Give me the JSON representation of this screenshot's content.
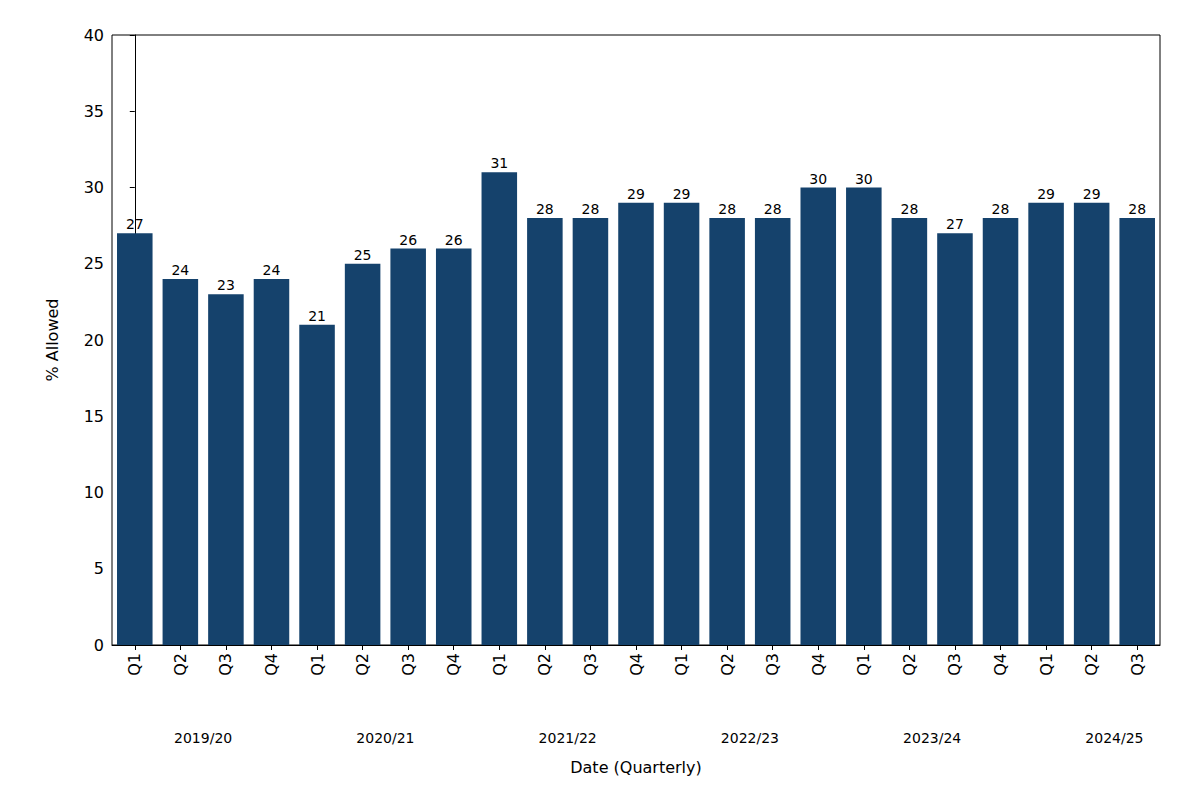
{
  "chart_data": {
    "type": "bar",
    "x_label": "Date (Quarterly)",
    "y_label": "% Allowed",
    "categories": [
      "Q1",
      "Q2",
      "Q3",
      "Q4",
      "Q1",
      "Q2",
      "Q3",
      "Q4",
      "Q1",
      "Q2",
      "Q3",
      "Q4",
      "Q1",
      "Q2",
      "Q3",
      "Q4",
      "Q1",
      "Q2",
      "Q3",
      "Q4",
      "Q1",
      "Q2",
      "Q3"
    ],
    "category_groups": [
      "2019/20",
      "2020/21",
      "2021/22",
      "2022/23",
      "2023/24",
      "2024/25"
    ],
    "values": [
      27,
      24,
      23,
      24,
      21,
      25,
      26,
      26,
      31,
      28,
      28,
      29,
      29,
      28,
      28,
      30,
      30,
      28,
      27,
      28,
      29,
      29,
      28
    ],
    "color": "#15426c",
    "ylim": [
      0,
      40
    ],
    "yticks": [
      0,
      5,
      10,
      15,
      20,
      25,
      30,
      35,
      40
    ],
    "grid": false,
    "data_labels": true
  }
}
